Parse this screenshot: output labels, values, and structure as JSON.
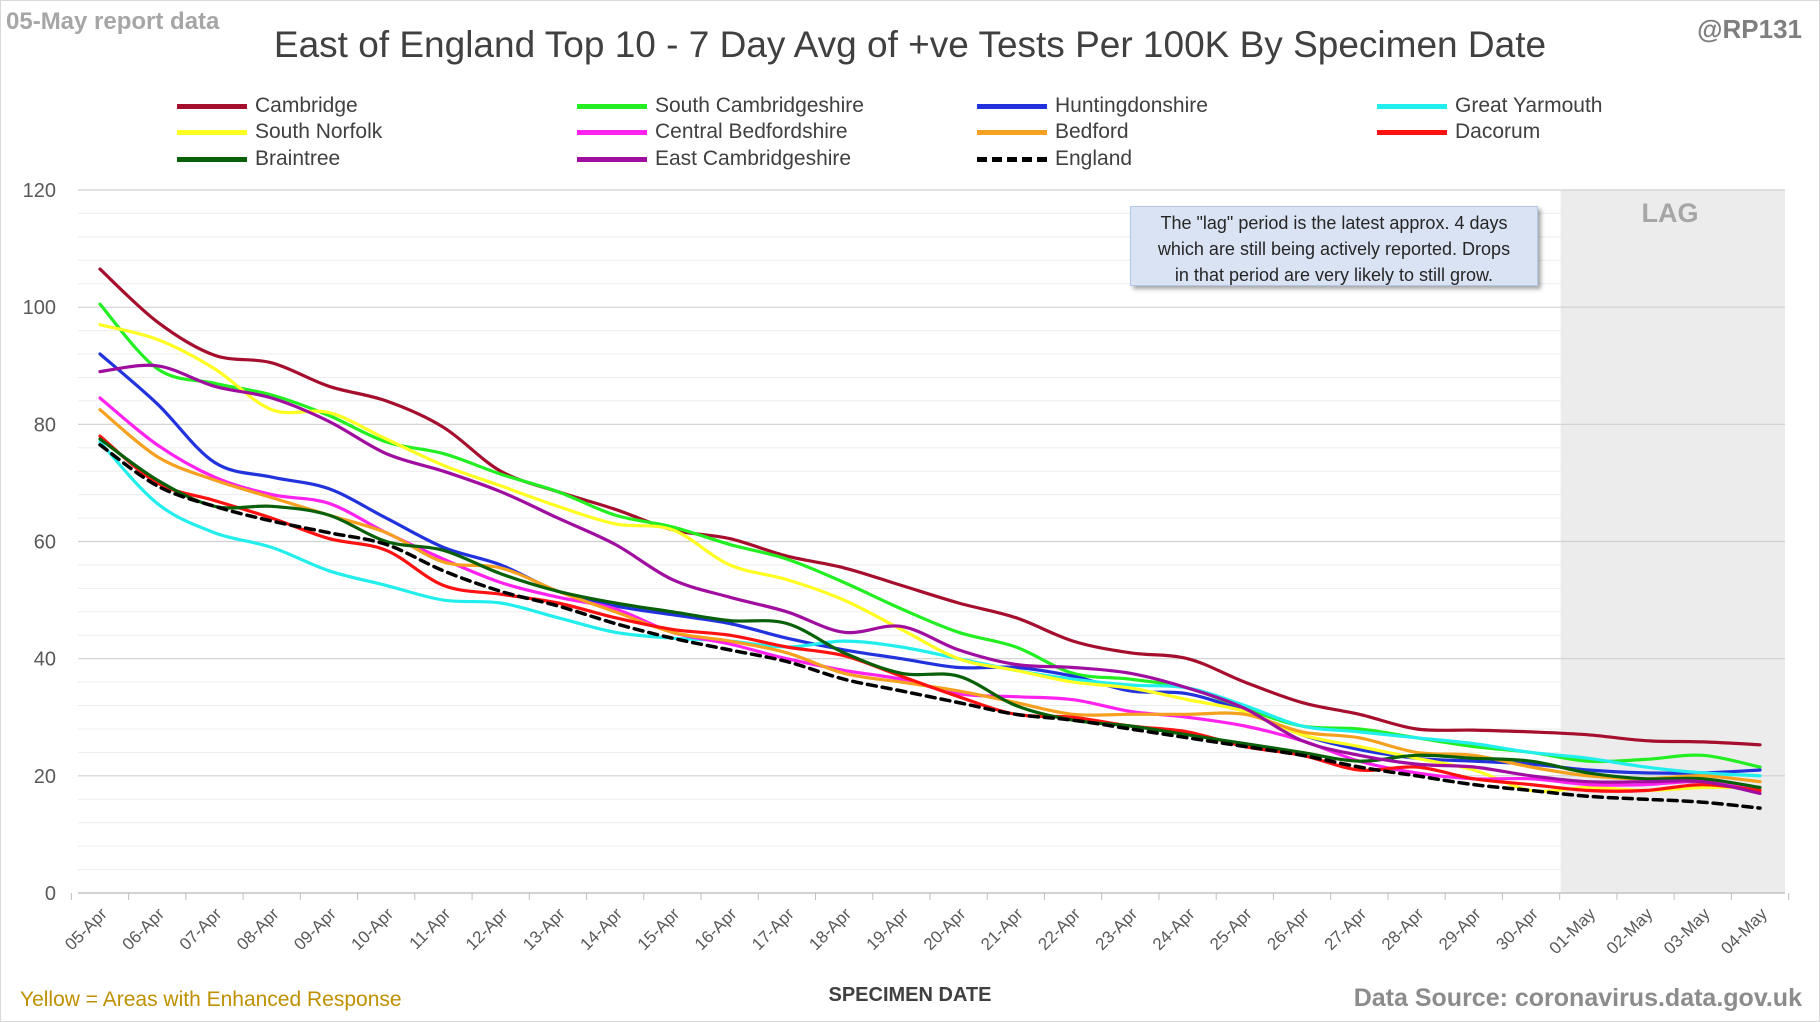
{
  "corner_left": "05-May report data",
  "corner_right": "@RP131",
  "footer_left": "Yellow = Areas with Enhanced Response",
  "footer_right": "Data Source: coronavirus.data.gov.uk",
  "lag_label": "LAG",
  "callout": [
    "The \"lag\" period is the latest approx. 4 days",
    "which are still being actively reported.  Drops",
    "in that period are very likely to still grow."
  ],
  "chart_data": {
    "type": "line",
    "title": "East of England Top 10 - 7 Day Avg of +ve Tests Per 100K By Specimen Date",
    "xlabel": "SPECIMEN DATE",
    "ylabel": "",
    "ylim": [
      0,
      120
    ],
    "yticks": [
      0,
      20,
      40,
      60,
      80,
      100,
      120
    ],
    "grid": true,
    "legend_position": "top",
    "lag_period": [
      "01-May",
      "04-May"
    ],
    "x": [
      "05-Apr",
      "06-Apr",
      "07-Apr",
      "08-Apr",
      "09-Apr",
      "10-Apr",
      "11-Apr",
      "12-Apr",
      "13-Apr",
      "14-Apr",
      "15-Apr",
      "16-Apr",
      "17-Apr",
      "18-Apr",
      "19-Apr",
      "20-Apr",
      "21-Apr",
      "22-Apr",
      "23-Apr",
      "24-Apr",
      "25-Apr",
      "26-Apr",
      "27-Apr",
      "28-Apr",
      "29-Apr",
      "30-Apr",
      "01-May",
      "02-May",
      "03-May",
      "04-May"
    ],
    "series": [
      {
        "name": "Cambridge",
        "color": "#a50f2d",
        "dashed": false,
        "values": [
          106.5,
          97.5,
          91.8,
          90.5,
          86.5,
          84,
          79.5,
          72,
          68.5,
          65.5,
          62,
          60.5,
          57.5,
          55.5,
          52.5,
          49.5,
          47,
          43,
          41,
          40,
          36,
          32.5,
          30.5,
          28,
          27.8,
          27.5,
          27,
          26,
          25.8,
          25.3
        ]
      },
      {
        "name": "South Cambridgeshire",
        "color": "#22ee22",
        "dashed": false,
        "values": [
          100.5,
          89.5,
          87,
          85,
          81.5,
          77,
          75,
          71.5,
          68.5,
          64.5,
          62.5,
          59.5,
          57,
          53,
          48.5,
          44.5,
          42,
          37.5,
          36.5,
          35,
          31.5,
          28.5,
          28,
          26.5,
          25,
          24,
          22.5,
          22.8,
          23.5,
          21.5
        ]
      },
      {
        "name": "Huntingdonshire",
        "color": "#2233dd",
        "dashed": false,
        "values": [
          92,
          83.5,
          73.5,
          71,
          69,
          64,
          59,
          56,
          51.5,
          49,
          47.5,
          46,
          43.5,
          41.5,
          40,
          38.5,
          38.5,
          37,
          34.5,
          34,
          31,
          27,
          24.5,
          23,
          22.5,
          22,
          21,
          20.5,
          20.5,
          21
        ]
      },
      {
        "name": "Great Yarmouth",
        "color": "#22eeee",
        "dashed": false,
        "values": [
          77,
          66.5,
          61.5,
          59,
          55,
          52.5,
          50,
          49.5,
          47,
          44.5,
          43.5,
          43,
          42,
          43,
          42,
          40,
          38,
          36.5,
          35.5,
          35,
          32,
          28.5,
          27.5,
          26.5,
          25.5,
          24,
          23,
          21.5,
          20.5,
          20
        ]
      },
      {
        "name": "South Norfolk",
        "color": "#ffff22",
        "dashed": false,
        "values": [
          97,
          94.5,
          89.5,
          82.5,
          82,
          77.5,
          73,
          69.5,
          66,
          63,
          62,
          56,
          53.5,
          50,
          45,
          40,
          38,
          36,
          35,
          33,
          31,
          27,
          25,
          23,
          21,
          17.5,
          18,
          17.5,
          18,
          18
        ]
      },
      {
        "name": "Central Bedfordshire",
        "color": "#ff22ee",
        "dashed": false,
        "values": [
          84.5,
          76.5,
          71,
          68,
          66.5,
          61.5,
          57,
          53,
          50.5,
          48.5,
          44.5,
          42.5,
          40,
          38,
          36.5,
          34,
          33.5,
          33,
          31,
          30,
          28.5,
          26,
          22.5,
          20.5,
          19.5,
          19.5,
          18.5,
          18.5,
          19,
          17.5
        ]
      },
      {
        "name": "Bedford",
        "color": "#f5a01e",
        "dashed": false,
        "values": [
          82.5,
          74.5,
          70.5,
          67.5,
          64.5,
          61.5,
          56.5,
          55.5,
          51.5,
          48,
          44.5,
          43,
          41,
          37.5,
          36,
          34.5,
          32.5,
          30.5,
          30.5,
          30.5,
          30.5,
          27.5,
          26.5,
          24,
          23.5,
          21.5,
          20,
          19.5,
          20,
          19
        ]
      },
      {
        "name": "Dacorum",
        "color": "#ff1111",
        "dashed": false,
        "values": [
          78,
          70,
          67,
          64,
          60.5,
          58.5,
          52.5,
          51,
          49.5,
          47,
          45,
          44,
          42,
          40.5,
          37,
          33.5,
          30.5,
          30,
          28.5,
          27.5,
          25,
          23.5,
          21,
          21.5,
          19.5,
          18.5,
          17.5,
          17.5,
          18.5,
          17.5
        ]
      },
      {
        "name": "Braintree",
        "color": "#086008",
        "dashed": false,
        "values": [
          77.5,
          70.5,
          66,
          66,
          64.5,
          60,
          58.5,
          54.5,
          51.5,
          49.5,
          48,
          46.5,
          46,
          41,
          37.5,
          37,
          32,
          29.5,
          28.5,
          27,
          25.5,
          24,
          22.5,
          23.5,
          23,
          22.5,
          20.5,
          19.5,
          19.5,
          18
        ]
      },
      {
        "name": "East Cambridgeshire",
        "color": "#a00ea0",
        "dashed": false,
        "values": [
          89,
          90,
          86.5,
          84.5,
          80.5,
          75,
          72,
          68.5,
          64,
          59.5,
          53.5,
          50.5,
          48,
          44.5,
          45.5,
          41.5,
          39,
          38.5,
          37.5,
          35,
          31.5,
          26,
          23.5,
          22,
          21.5,
          20,
          19,
          19,
          19,
          17
        ]
      },
      {
        "name": "England",
        "color": "#000000",
        "dashed": true,
        "values": [
          76.5,
          69.5,
          66,
          63.5,
          61.5,
          59.5,
          55,
          51.5,
          49,
          46,
          43.5,
          41.5,
          39.5,
          36.5,
          34.5,
          32.5,
          30.5,
          29.5,
          28,
          26.5,
          25,
          23.5,
          21.5,
          20,
          18.5,
          17.5,
          16.5,
          16,
          15.5,
          14.5
        ]
      }
    ]
  }
}
